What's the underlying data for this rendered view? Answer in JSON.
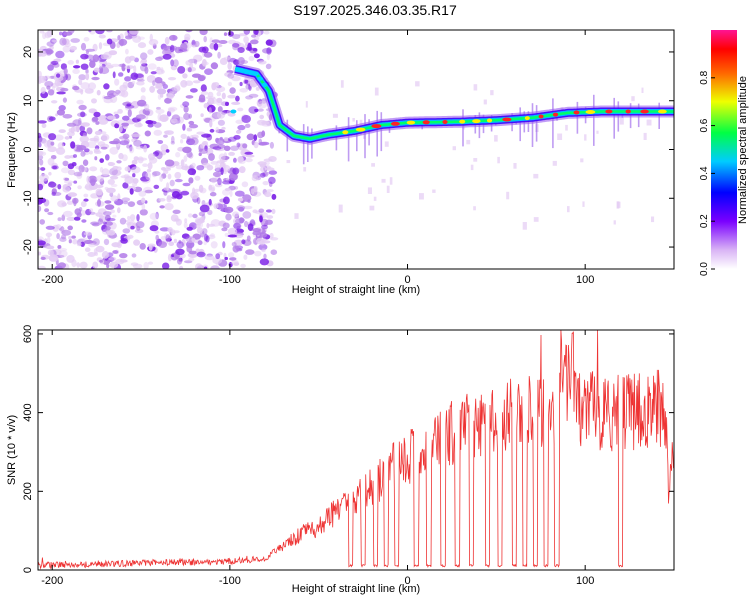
{
  "title": "S197.2025.346.03.35.R17",
  "colors": {
    "snr_line": "#ee3333",
    "axis": "#000000",
    "blob_faint": "#e4ccf4",
    "blob_mid": "#b27ce8",
    "blob_dark": "#7a1ee6"
  },
  "chart_data": [
    {
      "type": "heatmap",
      "title": "",
      "xlabel": "Height of straight line (km)",
      "ylabel": "Frequency (Hz)",
      "xlim": [
        -208,
        150
      ],
      "ylim": [
        -24.5,
        24.5
      ],
      "x_ticks": [
        -200,
        -100,
        0,
        100
      ],
      "y_ticks": [
        -20,
        -10,
        0,
        10,
        20
      ],
      "colorbar": {
        "label": "Normalized spectral amplitude",
        "range": [
          0.0,
          1.0
        ],
        "ticks": [
          "0.0",
          "0.2",
          "0.4",
          "0.6",
          "0.8"
        ]
      },
      "ridge": {
        "x": [
          -97,
          -85,
          -78,
          -72,
          -64,
          -55,
          -45,
          -30,
          -15,
          0,
          15,
          30,
          50,
          70,
          90,
          110,
          130,
          150
        ],
        "freq": [
          16.5,
          15.5,
          12.0,
          5.0,
          2.8,
          2.2,
          3.0,
          3.8,
          5.0,
          5.5,
          5.6,
          5.7,
          6.0,
          6.5,
          7.5,
          7.8,
          7.8,
          7.8
        ]
      },
      "noise_region_xlim": [
        -208,
        -75
      ]
    },
    {
      "type": "line",
      "title": "",
      "xlabel": "Height of straight line (km)",
      "ylabel": "SNR (10 * v/v)",
      "xlim": [
        -208,
        150
      ],
      "ylim": [
        0,
        610
      ],
      "x_ticks": [
        -200,
        -100,
        0,
        100
      ],
      "y_ticks": [
        0,
        200,
        400,
        600
      ],
      "series": [
        {
          "name": "SNR",
          "x": [
            -208,
            -190,
            -170,
            -150,
            -130,
            -110,
            -90,
            -80,
            -70,
            -60,
            -50,
            -40,
            -30,
            -20,
            -10,
            0,
            10,
            20,
            30,
            40,
            50,
            60,
            70,
            80,
            86,
            90,
            92,
            95,
            100,
            110,
            120,
            130,
            140,
            145,
            147,
            150
          ],
          "y": [
            12,
            14,
            15,
            18,
            20,
            20,
            25,
            30,
            60,
            90,
            110,
            150,
            180,
            210,
            250,
            290,
            300,
            330,
            360,
            380,
            390,
            390,
            400,
            400,
            470,
            500,
            540,
            420,
            410,
            400,
            400,
            400,
            410,
            420,
            210,
            330
          ]
        }
      ],
      "dropouts_x": [
        -32,
        -25,
        -18,
        -12,
        -6,
        5,
        12,
        20,
        28,
        36,
        45,
        52,
        60,
        66,
        72,
        78,
        84,
        120
      ]
    }
  ]
}
